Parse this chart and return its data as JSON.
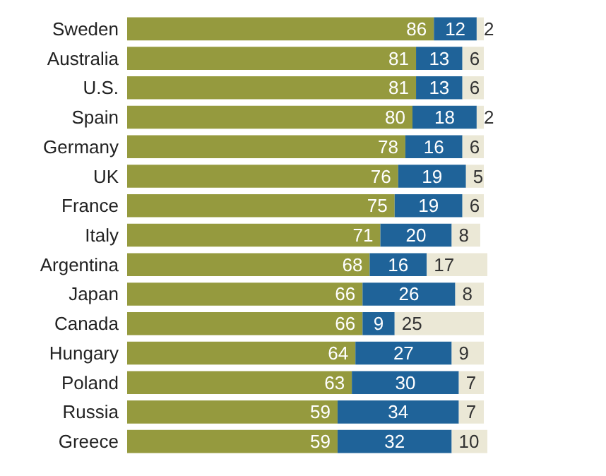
{
  "chart_data": {
    "type": "bar",
    "orientation": "horizontal",
    "stacked": true,
    "data_labels": true,
    "tick_labels": "y",
    "categories": [
      "Sweden",
      "Australia",
      "U.S.",
      "Spain",
      "Germany",
      "UK",
      "France",
      "Italy",
      "Argentina",
      "Japan",
      "Canada",
      "Hungary",
      "Poland",
      "Russia",
      "Greece"
    ],
    "series": [
      {
        "color": "#959a3e",
        "values": [
          86,
          81,
          81,
          80,
          78,
          76,
          75,
          71,
          68,
          66,
          66,
          64,
          63,
          59,
          59
        ]
      },
      {
        "color": "#1f6399",
        "values": [
          12,
          13,
          13,
          18,
          16,
          19,
          19,
          20,
          16,
          26,
          9,
          27,
          30,
          34,
          32
        ]
      },
      {
        "color": "#ebe8d6",
        "values": [
          2,
          6,
          6,
          2,
          6,
          5,
          6,
          8,
          17,
          8,
          25,
          9,
          7,
          7,
          10
        ]
      }
    ]
  }
}
